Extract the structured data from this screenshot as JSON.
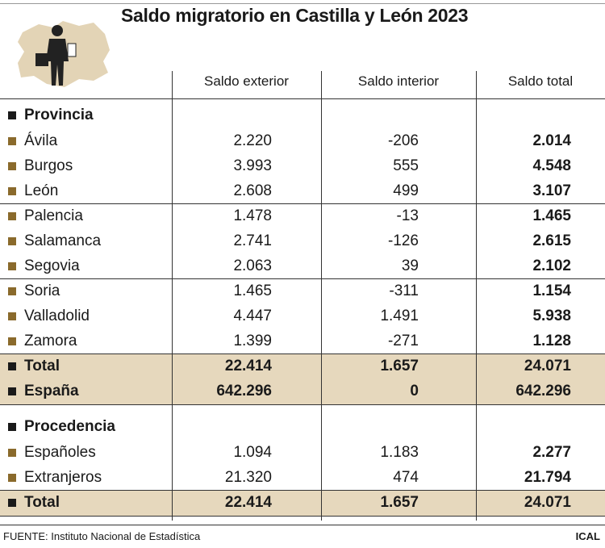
{
  "title": "Saldo migratorio en Castilla y León 2023",
  "columns": [
    "Saldo exterior",
    "Saldo interior",
    "Saldo total"
  ],
  "sections": [
    {
      "heading": "Provincia",
      "rows": [
        {
          "label": "Ávila",
          "values": [
            "2.220",
            "-206",
            "2.014"
          ]
        },
        {
          "label": "Burgos",
          "values": [
            "3.993",
            "555",
            "4.548"
          ]
        },
        {
          "label": "León",
          "values": [
            "2.608",
            "499",
            "3.107"
          ]
        },
        {
          "label": "Palencia",
          "values": [
            "1.478",
            "-13",
            "1.465"
          ]
        },
        {
          "label": "Salamanca",
          "values": [
            "2.741",
            "-126",
            "2.615"
          ]
        },
        {
          "label": "Segovia",
          "values": [
            "2.063",
            "39",
            "2.102"
          ]
        },
        {
          "label": "Soria",
          "values": [
            "1.465",
            "-311",
            "1.154"
          ]
        },
        {
          "label": "Valladolid",
          "values": [
            "4.447",
            "1.491",
            "5.938"
          ]
        },
        {
          "label": "Zamora",
          "values": [
            "1.399",
            "-271",
            "1.128"
          ]
        }
      ],
      "totals": [
        {
          "label": "Total",
          "values": [
            "22.414",
            "1.657",
            "24.071"
          ]
        },
        {
          "label": "España",
          "values": [
            "642.296",
            "0",
            "642.296"
          ]
        }
      ]
    },
    {
      "heading": "Procedencia",
      "rows": [
        {
          "label": "Españoles",
          "values": [
            "1.094",
            "1.183",
            "2.277"
          ]
        },
        {
          "label": "Extranjeros",
          "values": [
            "21.320",
            "474",
            "21.794"
          ]
        }
      ],
      "totals": [
        {
          "label": "Total",
          "values": [
            "22.414",
            "1.657",
            "24.071"
          ]
        }
      ]
    }
  ],
  "source": "FUENTE: Instituto Nacional de Estadística",
  "credit": "ICAL"
}
